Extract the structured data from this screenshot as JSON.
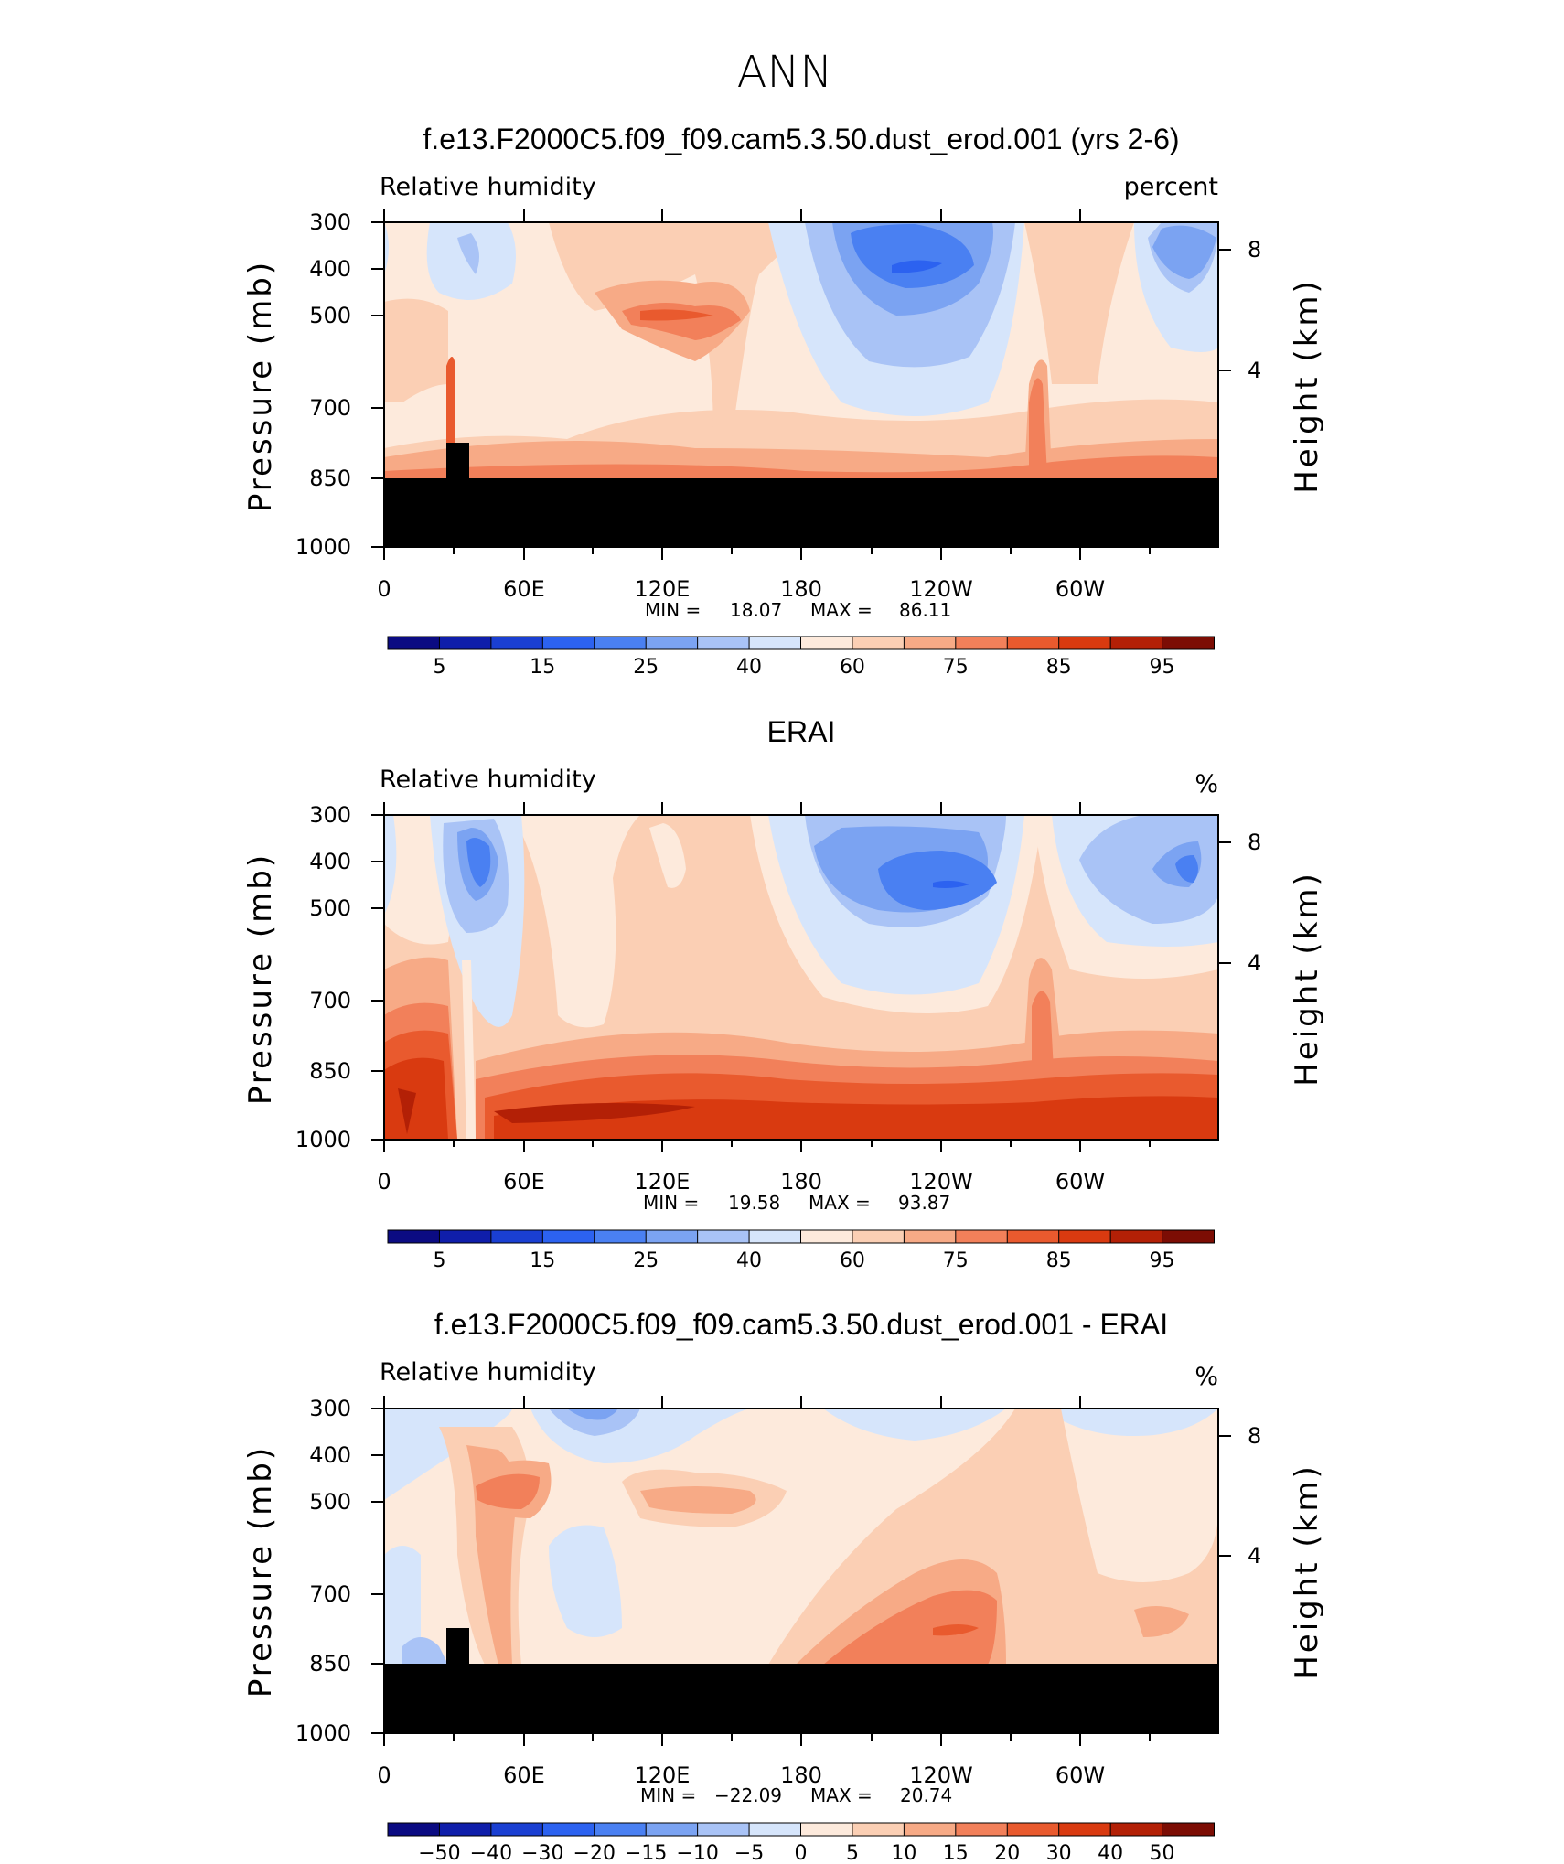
{
  "page_title": "ANN",
  "chart_data": [
    {
      "type": "contour",
      "title": "f.e13.F2000C5.f09_f09.cam5.3.50.dust_erod.001 (yrs 2-6)",
      "variable": "Relative humidity",
      "units": "percent",
      "ylabel": "Pressure (mb)",
      "ylabel_right": "Height (km)",
      "x_ticks": [
        "0",
        "60E",
        "120E",
        "180",
        "120W",
        "60W"
      ],
      "y_ticks": [
        "300",
        "400",
        "500",
        "700",
        "850",
        "1000"
      ],
      "y_ticks_right": [
        "8",
        "4"
      ],
      "stats": {
        "min_label": "MIN =",
        "min": "18.07",
        "max_label": "MAX =",
        "max": "86.11"
      },
      "colorbar_labels": [
        "5",
        "15",
        "25",
        "40",
        "60",
        "75",
        "85",
        "95"
      ],
      "masked_below_mb": 850
    },
    {
      "type": "contour",
      "title": "ERAI",
      "variable": "Relative humidity",
      "units": "%",
      "ylabel": "Pressure (mb)",
      "ylabel_right": "Height (km)",
      "x_ticks": [
        "0",
        "60E",
        "120E",
        "180",
        "120W",
        "60W"
      ],
      "y_ticks": [
        "300",
        "400",
        "500",
        "700",
        "850",
        "1000"
      ],
      "y_ticks_right": [
        "8",
        "4"
      ],
      "stats": {
        "min_label": "MIN =",
        "min": "19.58",
        "max_label": "MAX =",
        "max": "93.87"
      },
      "colorbar_labels": [
        "5",
        "15",
        "25",
        "40",
        "60",
        "75",
        "85",
        "95"
      ],
      "masked_below_mb": null
    },
    {
      "type": "contour",
      "title": "f.e13.F2000C5.f09_f09.cam5.3.50.dust_erod.001 - ERAI",
      "variable": "Relative humidity",
      "units": "%",
      "ylabel": "Pressure (mb)",
      "ylabel_right": "Height (km)",
      "x_ticks": [
        "0",
        "60E",
        "120E",
        "180",
        "120W",
        "60W"
      ],
      "y_ticks": [
        "300",
        "400",
        "500",
        "700",
        "850",
        "1000"
      ],
      "y_ticks_right": [
        "8",
        "4"
      ],
      "stats": {
        "min_label": "MIN =",
        "min": "−22.09",
        "max_label": "MAX =",
        "max": "20.74"
      },
      "colorbar_labels": [
        "−50",
        "−40",
        "−30",
        "−20",
        "−15",
        "−10",
        "−5",
        "0",
        "5",
        "10",
        "15",
        "20",
        "30",
        "40",
        "50"
      ],
      "masked_below_mb": 850
    }
  ],
  "colors": {
    "scale": [
      "#0b0b82",
      "#0f1eaa",
      "#1a3fd2",
      "#2c62f0",
      "#4a80f2",
      "#7ba3f2",
      "#a9c3f6",
      "#d6e5fb",
      "#fdeadc",
      "#fbcfb4",
      "#f7aa86",
      "#f2805a",
      "#e95a2e",
      "#d93a10",
      "#b32006",
      "#7c0d04"
    ]
  }
}
